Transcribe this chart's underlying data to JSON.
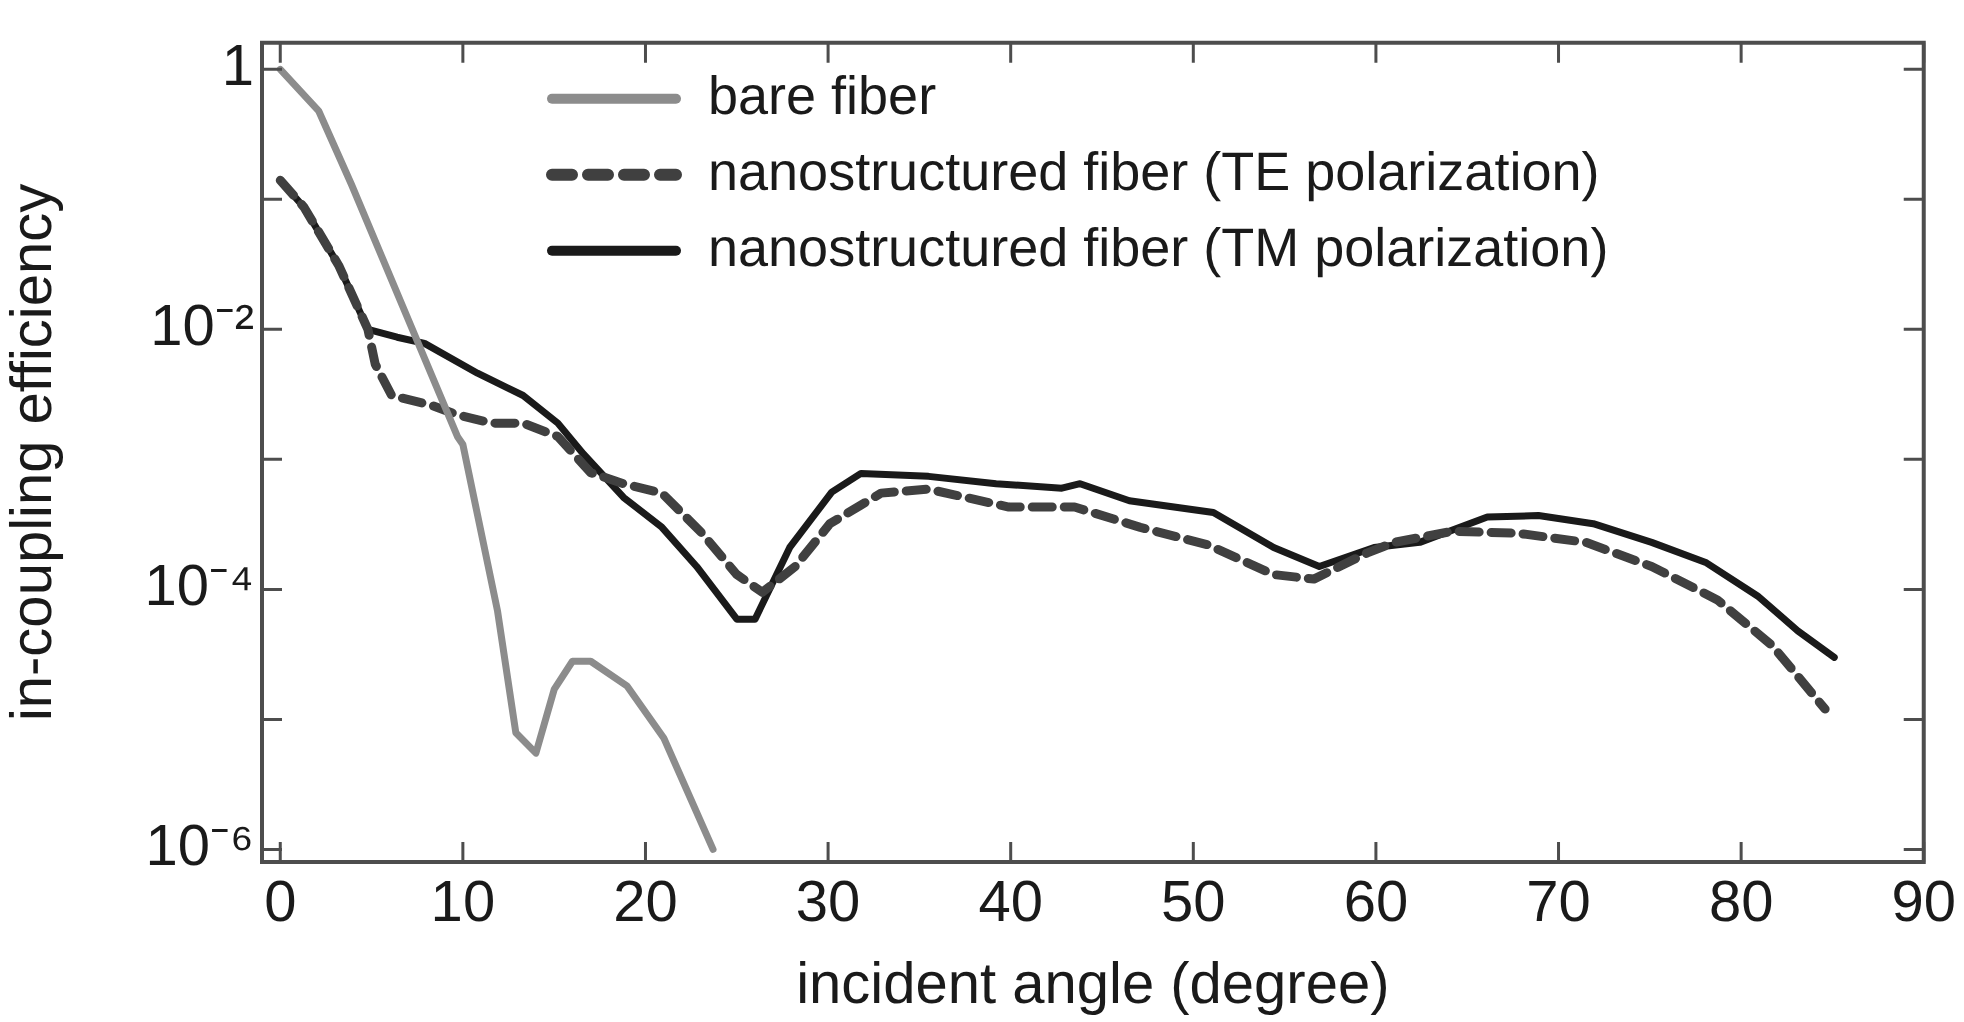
{
  "chart_data": {
    "type": "line",
    "xlabel": "incident angle (degree)",
    "ylabel": "in-coupling efficiency",
    "log": "y",
    "grid": false,
    "legend": "top",
    "xlim": [
      -1,
      90
    ],
    "ylim": [
      8e-07,
      1.6
    ],
    "xticks": [
      0,
      10,
      20,
      30,
      40,
      50,
      60,
      70,
      80,
      90
    ],
    "yticks": [
      {
        "value": 1,
        "label": "1"
      },
      {
        "value": 0.1,
        "label": null
      },
      {
        "value": 0.01,
        "label": "10⁻²"
      },
      {
        "value": 0.001,
        "label": null
      },
      {
        "value": 0.0001,
        "label": "10⁻⁴"
      },
      {
        "value": 1e-05,
        "label": null
      },
      {
        "value": 1e-06,
        "label": "10⁻⁶"
      }
    ],
    "series": [
      {
        "name": "bare fiber",
        "color": "#8c8c8c",
        "line_style": "solid",
        "x": [
          0,
          2.1,
          3.9,
          9.7,
          10,
          11.9,
          12.9,
          14,
          15,
          16,
          17,
          19,
          21,
          23.7
        ],
        "values": [
          1,
          0.48,
          0.13,
          0.0015,
          0.0013,
          6.8e-05,
          7.9e-06,
          5.5e-06,
          1.7e-05,
          2.8e-05,
          2.8e-05,
          1.8e-05,
          7.2e-06,
          1e-06
        ]
      },
      {
        "name": "nanostructured fiber (TE polarization)",
        "color": "#404040",
        "line_style": "dashed",
        "x": [
          0,
          1.3,
          3.2,
          4.8,
          5.2,
          6.1,
          8.3,
          9.7,
          11.6,
          13.3,
          15.2,
          17,
          18.8,
          20.9,
          23.1,
          25,
          26.4,
          28.2,
          30.1,
          32.9,
          35.5,
          39.9,
          43.5,
          47.1,
          50.8,
          54.4,
          56.6,
          59.5,
          61,
          64.2,
          67.8,
          71.5,
          75.1,
          78.7,
          81.7,
          84.6
        ],
        "values": [
          0.14,
          0.087,
          0.031,
          0.01,
          0.0054,
          0.0031,
          0.0026,
          0.0022,
          0.0019,
          0.0019,
          0.0015,
          0.00079,
          0.00065,
          0.00055,
          0.00027,
          0.00013,
          9.5e-05,
          0.00015,
          0.00032,
          0.00055,
          0.00059,
          0.00043,
          0.00043,
          0.0003,
          0.00022,
          0.00013,
          0.00012,
          0.00019,
          0.00023,
          0.00028,
          0.00027,
          0.00023,
          0.00015,
          8.3e-05,
          3.7e-05,
          1.2e-05
        ]
      },
      {
        "name": "nanostructured fiber (TM polarization)",
        "color": "#1a1a1a",
        "line_style": "solid",
        "x": [
          0,
          1.3,
          3.2,
          4.8,
          6.4,
          7.9,
          10.8,
          13.3,
          15.2,
          16.6,
          18.8,
          20.9,
          22.8,
          25,
          26,
          27.9,
          30.2,
          31.8,
          35.5,
          39.2,
          42.8,
          43.8,
          46.5,
          51.1,
          54.4,
          56.9,
          59.9,
          62.4,
          66.1,
          68.9,
          71.9,
          75.1,
          78.1,
          80.9,
          83.1,
          85.1
        ],
        "values": [
          0.14,
          0.087,
          0.031,
          0.01,
          0.0087,
          0.0078,
          0.0046,
          0.0031,
          0.0019,
          0.0011,
          0.00051,
          0.0003,
          0.00015,
          5.9e-05,
          5.9e-05,
          0.00021,
          0.00056,
          0.00078,
          0.00074,
          0.00065,
          0.0006,
          0.00065,
          0.00048,
          0.00039,
          0.00021,
          0.00015,
          0.00021,
          0.00023,
          0.00036,
          0.00037,
          0.00032,
          0.00023,
          0.00016,
          8.9e-05,
          4.8e-05,
          3e-05
        ]
      }
    ]
  }
}
